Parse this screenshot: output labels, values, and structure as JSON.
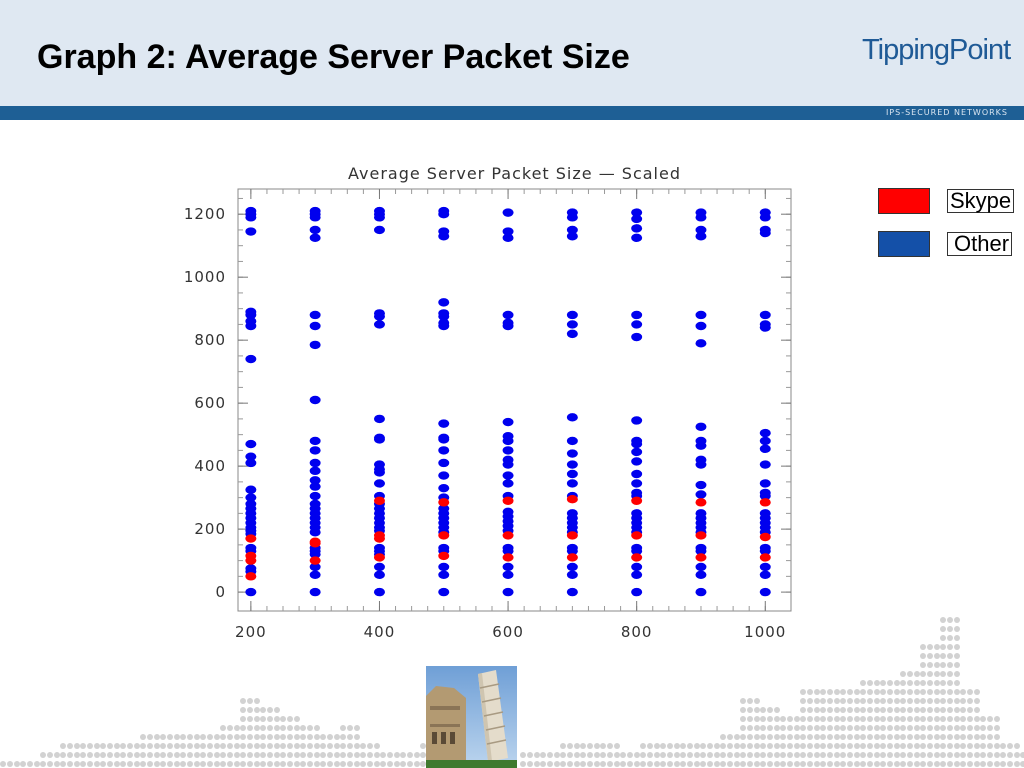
{
  "slide": {
    "title": "Graph 2: Average Server Packet Size",
    "logo_text": "TippingPoint",
    "tagline": "IPS-SECURED NETWORKS"
  },
  "colors": {
    "header_bg": "#dfe8f2",
    "band": "#1e5f95",
    "skype": "#ff0000",
    "other": "#0000ee",
    "legend_other": "#1450a8"
  },
  "legend": {
    "items": [
      {
        "label": "Skype",
        "color": "#ff0000"
      },
      {
        "label": "Other",
        "color": "#1450a8"
      }
    ]
  },
  "chart_data": {
    "type": "scatter",
    "title": "Average Server Packet Size — Scaled",
    "xlabel": "",
    "ylabel": "",
    "xlim": [
      180,
      1040
    ],
    "ylim": [
      -60,
      1280
    ],
    "x_ticks": [
      200,
      400,
      600,
      800,
      1000
    ],
    "y_ticks": [
      0,
      200,
      400,
      600,
      800,
      1000,
      1200
    ],
    "grid": false,
    "legend_position": "right",
    "series": [
      {
        "name": "Other",
        "color": "#0000ee",
        "points": [
          [
            200,
            1210
          ],
          [
            200,
            1200
          ],
          [
            200,
            1190
          ],
          [
            200,
            1145
          ],
          [
            200,
            890
          ],
          [
            200,
            880
          ],
          [
            200,
            860
          ],
          [
            200,
            845
          ],
          [
            200,
            740
          ],
          [
            200,
            470
          ],
          [
            200,
            430
          ],
          [
            200,
            410
          ],
          [
            200,
            325
          ],
          [
            200,
            300
          ],
          [
            200,
            280
          ],
          [
            200,
            265
          ],
          [
            200,
            250
          ],
          [
            200,
            235
          ],
          [
            200,
            220
          ],
          [
            200,
            205
          ],
          [
            200,
            195
          ],
          [
            200,
            185
          ],
          [
            200,
            140
          ],
          [
            200,
            130
          ],
          [
            200,
            75
          ],
          [
            200,
            65
          ],
          [
            200,
            0
          ],
          [
            300,
            1210
          ],
          [
            300,
            1200
          ],
          [
            300,
            1190
          ],
          [
            300,
            1150
          ],
          [
            300,
            1125
          ],
          [
            300,
            880
          ],
          [
            300,
            845
          ],
          [
            300,
            785
          ],
          [
            300,
            610
          ],
          [
            300,
            480
          ],
          [
            300,
            450
          ],
          [
            300,
            410
          ],
          [
            300,
            385
          ],
          [
            300,
            355
          ],
          [
            300,
            335
          ],
          [
            300,
            305
          ],
          [
            300,
            280
          ],
          [
            300,
            265
          ],
          [
            300,
            250
          ],
          [
            300,
            235
          ],
          [
            300,
            220
          ],
          [
            300,
            205
          ],
          [
            300,
            190
          ],
          [
            300,
            140
          ],
          [
            300,
            130
          ],
          [
            300,
            120
          ],
          [
            300,
            80
          ],
          [
            300,
            55
          ],
          [
            300,
            0
          ],
          [
            400,
            1210
          ],
          [
            400,
            1200
          ],
          [
            400,
            1190
          ],
          [
            400,
            1150
          ],
          [
            400,
            885
          ],
          [
            400,
            875
          ],
          [
            400,
            850
          ],
          [
            400,
            550
          ],
          [
            400,
            490
          ],
          [
            400,
            485
          ],
          [
            400,
            405
          ],
          [
            400,
            390
          ],
          [
            400,
            380
          ],
          [
            400,
            345
          ],
          [
            400,
            305
          ],
          [
            400,
            280
          ],
          [
            400,
            265
          ],
          [
            400,
            250
          ],
          [
            400,
            235
          ],
          [
            400,
            220
          ],
          [
            400,
            205
          ],
          [
            400,
            195
          ],
          [
            400,
            140
          ],
          [
            400,
            130
          ],
          [
            400,
            120
          ],
          [
            400,
            80
          ],
          [
            400,
            55
          ],
          [
            400,
            0
          ],
          [
            500,
            1210
          ],
          [
            500,
            1200
          ],
          [
            500,
            1145
          ],
          [
            500,
            1130
          ],
          [
            500,
            920
          ],
          [
            500,
            885
          ],
          [
            500,
            875
          ],
          [
            500,
            855
          ],
          [
            500,
            845
          ],
          [
            500,
            535
          ],
          [
            500,
            490
          ],
          [
            500,
            485
          ],
          [
            500,
            450
          ],
          [
            500,
            410
          ],
          [
            500,
            370
          ],
          [
            500,
            330
          ],
          [
            500,
            300
          ],
          [
            500,
            265
          ],
          [
            500,
            250
          ],
          [
            500,
            235
          ],
          [
            500,
            220
          ],
          [
            500,
            205
          ],
          [
            500,
            190
          ],
          [
            500,
            140
          ],
          [
            500,
            130
          ],
          [
            500,
            80
          ],
          [
            500,
            55
          ],
          [
            500,
            0
          ],
          [
            600,
            1205
          ],
          [
            600,
            1145
          ],
          [
            600,
            1125
          ],
          [
            600,
            880
          ],
          [
            600,
            855
          ],
          [
            600,
            845
          ],
          [
            600,
            540
          ],
          [
            600,
            495
          ],
          [
            600,
            480
          ],
          [
            600,
            450
          ],
          [
            600,
            420
          ],
          [
            600,
            405
          ],
          [
            600,
            370
          ],
          [
            600,
            345
          ],
          [
            600,
            305
          ],
          [
            600,
            255
          ],
          [
            600,
            240
          ],
          [
            600,
            225
          ],
          [
            600,
            210
          ],
          [
            600,
            195
          ],
          [
            600,
            140
          ],
          [
            600,
            130
          ],
          [
            600,
            80
          ],
          [
            600,
            55
          ],
          [
            600,
            0
          ],
          [
            700,
            1205
          ],
          [
            700,
            1190
          ],
          [
            700,
            1150
          ],
          [
            700,
            1130
          ],
          [
            700,
            880
          ],
          [
            700,
            850
          ],
          [
            700,
            820
          ],
          [
            700,
            555
          ],
          [
            700,
            480
          ],
          [
            700,
            440
          ],
          [
            700,
            405
          ],
          [
            700,
            375
          ],
          [
            700,
            345
          ],
          [
            700,
            305
          ],
          [
            700,
            250
          ],
          [
            700,
            235
          ],
          [
            700,
            220
          ],
          [
            700,
            205
          ],
          [
            700,
            190
          ],
          [
            700,
            140
          ],
          [
            700,
            130
          ],
          [
            700,
            80
          ],
          [
            700,
            55
          ],
          [
            700,
            0
          ],
          [
            800,
            1205
          ],
          [
            800,
            1185
          ],
          [
            800,
            1155
          ],
          [
            800,
            1125
          ],
          [
            800,
            880
          ],
          [
            800,
            850
          ],
          [
            800,
            810
          ],
          [
            800,
            545
          ],
          [
            800,
            480
          ],
          [
            800,
            470
          ],
          [
            800,
            445
          ],
          [
            800,
            415
          ],
          [
            800,
            375
          ],
          [
            800,
            345
          ],
          [
            800,
            315
          ],
          [
            800,
            305
          ],
          [
            800,
            250
          ],
          [
            800,
            235
          ],
          [
            800,
            220
          ],
          [
            800,
            205
          ],
          [
            800,
            190
          ],
          [
            800,
            140
          ],
          [
            800,
            130
          ],
          [
            800,
            80
          ],
          [
            800,
            55
          ],
          [
            800,
            0
          ],
          [
            900,
            1205
          ],
          [
            900,
            1190
          ],
          [
            900,
            1150
          ],
          [
            900,
            1130
          ],
          [
            900,
            880
          ],
          [
            900,
            845
          ],
          [
            900,
            790
          ],
          [
            900,
            525
          ],
          [
            900,
            480
          ],
          [
            900,
            465
          ],
          [
            900,
            420
          ],
          [
            900,
            405
          ],
          [
            900,
            340
          ],
          [
            900,
            310
          ],
          [
            900,
            250
          ],
          [
            900,
            235
          ],
          [
            900,
            220
          ],
          [
            900,
            205
          ],
          [
            900,
            190
          ],
          [
            900,
            140
          ],
          [
            900,
            130
          ],
          [
            900,
            80
          ],
          [
            900,
            55
          ],
          [
            900,
            0
          ],
          [
            1000,
            1205
          ],
          [
            1000,
            1190
          ],
          [
            1000,
            1150
          ],
          [
            1000,
            1140
          ],
          [
            1000,
            880
          ],
          [
            1000,
            850
          ],
          [
            1000,
            840
          ],
          [
            1000,
            505
          ],
          [
            1000,
            480
          ],
          [
            1000,
            455
          ],
          [
            1000,
            405
          ],
          [
            1000,
            345
          ],
          [
            1000,
            315
          ],
          [
            1000,
            305
          ],
          [
            1000,
            250
          ],
          [
            1000,
            235
          ],
          [
            1000,
            220
          ],
          [
            1000,
            205
          ],
          [
            1000,
            190
          ],
          [
            1000,
            140
          ],
          [
            1000,
            130
          ],
          [
            1000,
            80
          ],
          [
            1000,
            55
          ],
          [
            1000,
            0
          ]
        ]
      },
      {
        "name": "Skype",
        "color": "#ff0000",
        "points": [
          [
            200,
            170
          ],
          [
            200,
            115
          ],
          [
            200,
            100
          ],
          [
            200,
            50
          ],
          [
            300,
            160
          ],
          [
            300,
            155
          ],
          [
            300,
            100
          ],
          [
            400,
            290
          ],
          [
            400,
            180
          ],
          [
            400,
            170
          ],
          [
            400,
            110
          ],
          [
            500,
            285
          ],
          [
            500,
            180
          ],
          [
            500,
            115
          ],
          [
            600,
            290
          ],
          [
            600,
            180
          ],
          [
            600,
            110
          ],
          [
            700,
            295
          ],
          [
            700,
            180
          ],
          [
            700,
            110
          ],
          [
            800,
            290
          ],
          [
            800,
            180
          ],
          [
            800,
            110
          ],
          [
            900,
            285
          ],
          [
            900,
            180
          ],
          [
            900,
            110
          ],
          [
            1000,
            285
          ],
          [
            1000,
            175
          ],
          [
            1000,
            110
          ]
        ]
      }
    ]
  }
}
